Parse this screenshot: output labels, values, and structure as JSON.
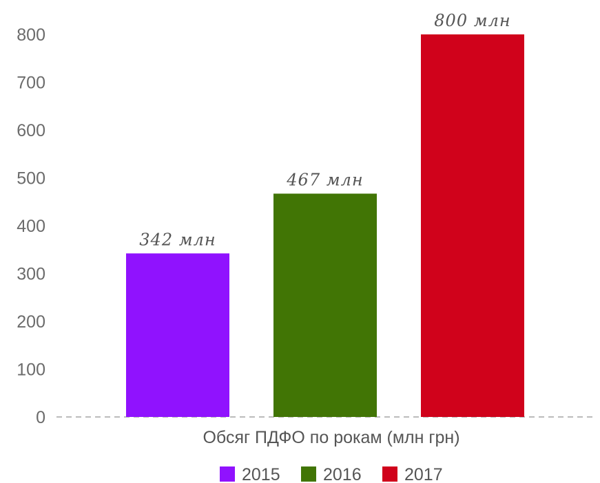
{
  "chart_data": {
    "type": "bar",
    "title": "",
    "xlabel": "Обсяг ПДФО по рокам (млн грн)",
    "ylabel": "",
    "ylim": [
      0,
      800
    ],
    "yticks": [
      "0",
      "100",
      "200",
      "300",
      "400",
      "500",
      "600",
      "700",
      "800"
    ],
    "grid": false,
    "legend": "bottom",
    "series": [
      {
        "name": "2015",
        "value": 342,
        "label": "342 млн",
        "color": "#9012fe"
      },
      {
        "name": "2016",
        "value": 467,
        "label": "467 млн",
        "color": "#417505"
      },
      {
        "name": "2017",
        "value": 800,
        "label": "800 млн",
        "color": "#d0021b"
      }
    ]
  }
}
